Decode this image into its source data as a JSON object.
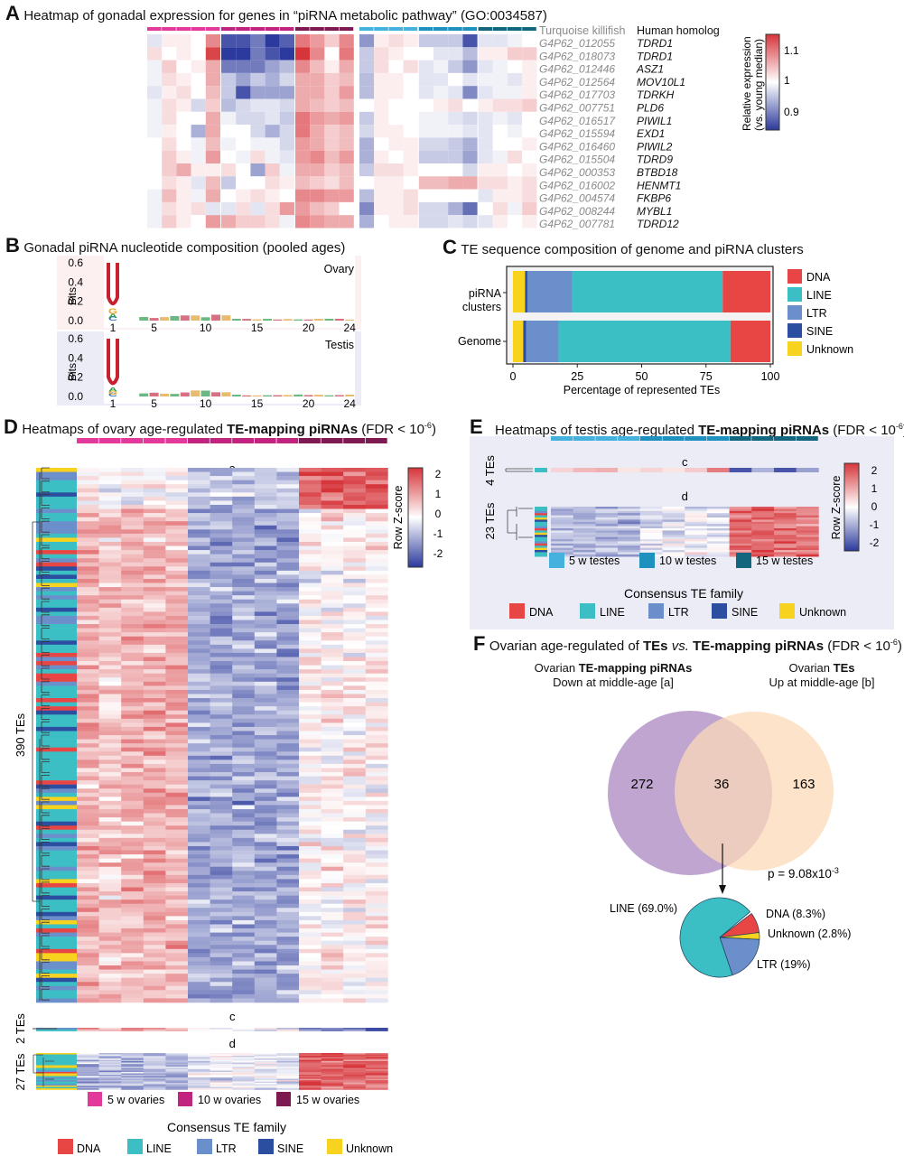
{
  "colors": {
    "ovary5": "#e2399a",
    "ovary10": "#c0247e",
    "ovary15": "#7d1a52",
    "testis5": "#45b2de",
    "testis10": "#1f91bf",
    "testis15": "#12677f",
    "DNA": "#e84545",
    "LINE": "#3bbfc4",
    "LTR": "#6b8fcb",
    "SINE": "#2c4ea0",
    "Unknown": "#f7d21e",
    "heat_low": "#2b3a9c",
    "heat_mid": "#ffffff",
    "heat_high": "#d6353a",
    "panelB_ovary_bg": "#fdf0f1",
    "panelB_testis_bg": "#ececf6",
    "panelE_bg": "#ececf6",
    "venn_a": "#b99bcc",
    "venn_b": "#fbd9b7"
  },
  "panelA": {
    "letter": "A",
    "title": "Heatmap of gonadal expression for genes in “piRNA metabolic pathway” (GO:0034587)",
    "col_header_fish": "Turquoise killifish",
    "col_header_human": "Human homolog",
    "colorbar_label_1": "Relative expression",
    "colorbar_label_2": "(vs. young median)",
    "colorbar_ticks": [
      "1.1",
      "1",
      "0.9"
    ],
    "genes": [
      {
        "id": "G4P62_012055",
        "homolog": "TDRD1"
      },
      {
        "id": "G4P62_018073",
        "homolog": "TDRD1"
      },
      {
        "id": "G4P62_012446",
        "homolog": "ASZ1"
      },
      {
        "id": "G4P62_012564",
        "homolog": "MOV10L1"
      },
      {
        "id": "G4P62_017703",
        "homolog": "TDRKH"
      },
      {
        "id": "G4P62_007751",
        "homolog": "PLD6"
      },
      {
        "id": "G4P62_016517",
        "homolog": "PIWIL1"
      },
      {
        "id": "G4P62_015594",
        "homolog": "EXD1"
      },
      {
        "id": "G4P62_016460",
        "homolog": "PIWIL2"
      },
      {
        "id": "G4P62_015504",
        "homolog": "TDRD9"
      },
      {
        "id": "G4P62_000353",
        "homolog": "BTBD18"
      },
      {
        "id": "G4P62_016002",
        "homolog": "HENMT1"
      },
      {
        "id": "G4P62_004574",
        "homolog": "FKBP6"
      },
      {
        "id": "G4P62_008244",
        "homolog": "MYBL1"
      },
      {
        "id": "G4P62_007781",
        "homolog": "TDRD12"
      }
    ],
    "ovary_values": [
      [
        0.98,
        1.01,
        1.01,
        1.0,
        1.07,
        0.87,
        0.87,
        0.9,
        0.84,
        0.88,
        1.08,
        1.06,
        1.03,
        1.07
      ],
      [
        1.02,
        1.0,
        1.01,
        1.0,
        1.11,
        0.84,
        0.84,
        0.9,
        0.87,
        0.85,
        1.12,
        1.07,
        1.0,
        1.08
      ],
      [
        0.99,
        1.03,
        1.0,
        1.01,
        1.05,
        0.9,
        0.9,
        0.9,
        0.93,
        0.95,
        1.07,
        1.04,
        1.01,
        1.05
      ],
      [
        0.99,
        1.02,
        1.01,
        1.0,
        1.05,
        0.96,
        0.93,
        0.96,
        0.94,
        0.97,
        1.05,
        1.05,
        1.03,
        1.04
      ],
      [
        0.98,
        1.01,
        1.02,
        1.0,
        1.04,
        0.96,
        0.87,
        0.93,
        0.93,
        0.93,
        1.05,
        1.05,
        1.03,
        1.06
      ],
      [
        0.99,
        1.02,
        1.01,
        0.97,
        1.03,
        0.95,
        0.97,
        0.98,
        0.98,
        0.97,
        1.05,
        1.04,
        1.03,
        1.04
      ],
      [
        0.99,
        1.02,
        1.0,
        1.0,
        1.05,
        0.99,
        0.97,
        0.97,
        0.98,
        0.96,
        1.08,
        1.06,
        1.05,
        1.06
      ],
      [
        0.99,
        1.01,
        1.0,
        0.94,
        1.05,
        1.0,
        1.0,
        0.97,
        0.94,
        0.97,
        1.08,
        1.05,
        1.03,
        1.04
      ],
      [
        1.0,
        1.02,
        1.0,
        0.99,
        1.04,
        0.99,
        1.0,
        0.99,
        0.99,
        0.97,
        1.06,
        1.05,
        1.03,
        1.04
      ],
      [
        1.0,
        1.03,
        1.01,
        0.99,
        1.06,
        1.0,
        0.99,
        1.02,
        0.99,
        0.98,
        1.06,
        1.07,
        1.04,
        1.06
      ],
      [
        1.0,
        1.03,
        1.05,
        1.01,
        1.01,
        1.02,
        1.0,
        0.93,
        1.03,
        0.99,
        1.05,
        1.05,
        1.03,
        1.04
      ],
      [
        1.0,
        1.02,
        1.01,
        0.98,
        1.04,
        0.96,
        1.0,
        1.0,
        1.02,
        1.01,
        1.04,
        1.03,
        1.02,
        1.04
      ],
      [
        0.99,
        1.04,
        1.01,
        0.99,
        1.05,
        1.0,
        1.01,
        1.02,
        1.01,
        1.0,
        1.07,
        1.07,
        1.06,
        1.06
      ],
      [
        0.99,
        1.02,
        1.01,
        1.02,
        0.98,
        0.98,
        1.02,
        0.98,
        1.02,
        1.06,
        1.06,
        1.04,
        1.03,
        1.0
      ],
      [
        0.99,
        1.03,
        1.01,
        1.0,
        1.06,
        1.05,
        1.03,
        1.03,
        1.02,
        0.99,
        1.07,
        1.06,
        1.05,
        1.05
      ]
    ],
    "testis_values": [
      [
        0.92,
        1.01,
        1.02,
        1.01,
        0.96,
        0.96,
        0.96,
        0.87,
        0.98,
        0.98,
        0.99,
        1.0
      ],
      [
        0.96,
        1.02,
        1.01,
        1.0,
        1.0,
        0.98,
        0.98,
        0.95,
        1.01,
        1.01,
        1.03,
        1.03
      ],
      [
        0.96,
        1.02,
        1.0,
        1.02,
        0.98,
        0.99,
        0.96,
        0.92,
        0.98,
        0.99,
        1.0,
        1.01
      ],
      [
        0.95,
        1.01,
        1.01,
        1.0,
        0.98,
        0.98,
        1.0,
        0.98,
        0.99,
        0.99,
        0.98,
        1.01
      ],
      [
        0.95,
        1.01,
        1.01,
        1.0,
        0.98,
        0.99,
        0.98,
        0.91,
        0.98,
        0.99,
        0.99,
        1.01
      ],
      [
        1.0,
        1.01,
        1.0,
        1.0,
        1.0,
        1.01,
        1.02,
        1.0,
        1.01,
        1.02,
        1.02,
        1.03
      ],
      [
        0.96,
        1.01,
        1.0,
        1.0,
        0.99,
        0.99,
        0.98,
        0.97,
        0.98,
        0.99,
        0.98,
        1.0
      ],
      [
        0.97,
        1.01,
        1.01,
        1.0,
        0.99,
        0.99,
        0.99,
        0.98,
        0.98,
        1.0,
        0.99,
        1.0
      ],
      [
        0.94,
        1.0,
        1.01,
        1.01,
        0.97,
        0.97,
        0.96,
        0.94,
        0.98,
        1.0,
        1.0,
        1.01
      ],
      [
        0.94,
        1.01,
        1.0,
        1.01,
        0.96,
        0.96,
        0.96,
        0.93,
        0.98,
        0.99,
        1.02,
        1.0
      ],
      [
        0.96,
        1.02,
        1.02,
        1.01,
        1.0,
        1.0,
        1.0,
        0.97,
        1.01,
        1.01,
        1.0,
        1.01
      ],
      [
        1.0,
        1.01,
        1.01,
        1.0,
        1.04,
        1.04,
        1.05,
        1.05,
        1.02,
        1.02,
        1.01,
        1.02
      ],
      [
        0.95,
        1.01,
        1.01,
        1.02,
        1.0,
        1.0,
        1.0,
        1.0,
        0.98,
        1.01,
        1.01,
        1.02
      ],
      [
        0.91,
        1.01,
        1.01,
        1.02,
        0.97,
        0.97,
        0.94,
        0.89,
        1.0,
        1.02,
        0.99,
        1.03
      ],
      [
        0.94,
        1.0,
        1.01,
        1.01,
        0.97,
        0.97,
        0.98,
        0.97,
        0.98,
        1.01,
        1.0,
        1.01
      ]
    ]
  },
  "panelB": {
    "letter": "B",
    "title": "Gonadal piRNA nucleotide composition (pooled ages)",
    "ylabel": "Bits",
    "yticks": [
      "0.6",
      "0.4",
      "0.2",
      "0.0"
    ],
    "xticks": [
      "1",
      "5",
      "10",
      "15",
      "20",
      "24"
    ],
    "ovary_label": "Ovary",
    "testis_label": "Testis"
  },
  "panelC": {
    "letter": "C",
    "title": "TE sequence composition of genome and piRNA clusters",
    "xlabel": "Percentage of represented TEs",
    "xticks": [
      "0",
      "25",
      "50",
      "75",
      "100"
    ],
    "legend": [
      "DNA",
      "LINE",
      "LTR",
      "SINE",
      "Unknown"
    ]
  },
  "panelD": {
    "letter": "D",
    "title_prefix": "Heatmaps of ovary age-regulated ",
    "title_bold": "TE-mapping piRNAs",
    "title_suffix": " (FDR < 10",
    "title_sup": "-6",
    "title_close": ")",
    "cluster_a": "a",
    "cluster_c": "c",
    "cluster_d": "d",
    "row_label_390": "390 TEs",
    "row_label_2": "2 TEs",
    "row_label_27": "27 TEs",
    "zscore_label": "Row Z-score",
    "zscore_ticks": [
      "2",
      "1",
      "0",
      "-1",
      "-2"
    ],
    "age_legend": [
      "5 w ovaries",
      "10 w ovaries",
      "15 w ovaries"
    ],
    "family_legend_title": "Consensus TE family",
    "family_legend": [
      "DNA",
      "LINE",
      "LTR",
      "SINE",
      "Unknown"
    ]
  },
  "panelE": {
    "letter": "E",
    "title_prefix": "Heatmaps of testis age-regulated ",
    "title_bold": "TE-mapping  piRNAs",
    "title_suffix": " (FDR < 10",
    "title_sup": "-6",
    "title_close": ")",
    "cluster_c": "c",
    "cluster_d": "d",
    "row_label_4": "4 TEs",
    "row_label_23": "23 TEs",
    "zscore_label": "Row Z-score",
    "zscore_ticks": [
      "2",
      "1",
      "0",
      "-1",
      "-2"
    ],
    "age_legend": [
      "5 w testes",
      "10 w testes",
      "15 w testes"
    ],
    "family_legend_title": "Consensus TE family",
    "family_legend": [
      "DNA",
      "LINE",
      "LTR",
      "SINE",
      "Unknown"
    ]
  },
  "panelF": {
    "letter": "F",
    "title_p1": "Ovarian age-regulated of ",
    "title_b1": "TEs",
    "title_i": " vs. ",
    "title_b2": "TE-mapping piRNAs",
    "title_suffix": " (FDR < 10",
    "title_sup": "-6",
    "title_close": ")",
    "set_a_line1_prefix": "Ovarian ",
    "set_a_line1_bold": "TE-mapping piRNAs",
    "set_a_line2": "Down at middle-age [a]",
    "set_b_line1_prefix": "Ovarian ",
    "set_b_line1_bold": "TEs",
    "set_b_line2": "Up at middle-age [b]",
    "only_a": "272",
    "overlap": "36",
    "only_b": "163",
    "pvalue_prefix": "p = 9.08x10",
    "pvalue_sup": "-3",
    "pie_labels": [
      "LINE (69.0%)",
      "DNA (8.3%)",
      "Unknown (2.8%)",
      "LTR (19%)"
    ]
  },
  "chart_data": [
    {
      "id": "A",
      "type": "heatmap",
      "title": "Heatmap of gonadal expression for genes in “piRNA metabolic pathway” (GO:0034587)",
      "rows": [
        "TDRD1",
        "TDRD1",
        "ASZ1",
        "MOV10L1",
        "TDRKH",
        "PLD6",
        "PIWIL1",
        "EXD1",
        "PIWIL2",
        "TDRD9",
        "BTBD18",
        "HENMT1",
        "FKBP6",
        "MYBL1",
        "TDRD12"
      ],
      "column_groups": [
        {
          "tissue": "ovary",
          "ages": [
            "5 w",
            "5 w",
            "5 w",
            "5 w",
            "5 w",
            "10 w",
            "10 w",
            "10 w",
            "10 w",
            "10 w",
            "15 w",
            "15 w",
            "15 w",
            "15 w"
          ]
        },
        {
          "tissue": "testis",
          "ages": [
            "5 w",
            "5 w",
            "5 w",
            "5 w",
            "10 w",
            "10 w",
            "10 w",
            "10 w",
            "15 w",
            "15 w",
            "15 w",
            "15 w"
          ]
        }
      ],
      "color_scale": {
        "label": "Relative expression (vs. young median)",
        "min": 0.85,
        "mid": 1.0,
        "max": 1.12,
        "ticks": [
          0.9,
          1,
          1.1
        ]
      }
    },
    {
      "id": "B",
      "type": "sequence-logo",
      "title": "Gonadal piRNA nucleotide composition (pooled ages)",
      "ylabel": "Bits",
      "ylim": [
        0,
        0.6
      ],
      "positions": 24,
      "series": [
        {
          "name": "Ovary",
          "pos1": {
            "U": 0.48,
            "G": 0.06,
            "A": 0.04,
            "C": 0.03
          }
        },
        {
          "name": "Testis",
          "pos1": {
            "U": 0.52,
            "A": 0.04,
            "G": 0.03,
            "C": 0.02
          }
        }
      ]
    },
    {
      "id": "C",
      "type": "bar",
      "orientation": "horizontal",
      "stacked": true,
      "title": "TE sequence composition of genome and piRNA clusters",
      "categories": [
        "piRNA clusters",
        "Genome"
      ],
      "series": [
        {
          "name": "Unknown",
          "values": [
            4.7,
            4.0
          ]
        },
        {
          "name": "SINE",
          "values": [
            0.9,
            1.1
          ]
        },
        {
          "name": "LTR",
          "values": [
            17.4,
            12.6
          ]
        },
        {
          "name": "LINE",
          "values": [
            58.5,
            66.8
          ]
        },
        {
          "name": "DNA",
          "values": [
            18.5,
            15.5
          ]
        }
      ],
      "xlabel": "Percentage of represented TEs",
      "xlim": [
        0,
        100
      ],
      "legend": "right"
    },
    {
      "id": "D",
      "type": "heatmap",
      "title": "Heatmaps of ovary age-regulated TE-mapping piRNAs (FDR < 10^-6)",
      "clusters": [
        {
          "name": "a",
          "n_TEs": 390
        },
        {
          "name": "c",
          "n_TEs": 2
        },
        {
          "name": "d",
          "n_TEs": 27
        }
      ],
      "columns": [
        "5 w",
        "5 w",
        "5 w",
        "5 w",
        "5 w",
        "10 w",
        "10 w",
        "10 w",
        "10 w",
        "10 w",
        "15 w",
        "15 w",
        "15 w",
        "15 w"
      ],
      "color_scale": {
        "label": "Row Z-score",
        "min": -2.3,
        "max": 2.3,
        "ticks": [
          -2,
          -1,
          0,
          1,
          2
        ]
      }
    },
    {
      "id": "E",
      "type": "heatmap",
      "title": "Heatmaps of testis age-regulated TE-mapping piRNAs (FDR < 10^-6)",
      "clusters": [
        {
          "name": "c",
          "n_TEs": 4
        },
        {
          "name": "d",
          "n_TEs": 23
        }
      ],
      "columns": [
        "5 w",
        "5 w",
        "5 w",
        "5 w",
        "10 w",
        "10 w",
        "10 w",
        "10 w",
        "15 w",
        "15 w",
        "15 w",
        "15 w"
      ],
      "color_scale": {
        "label": "Row Z-score",
        "min": -2.3,
        "max": 2.3,
        "ticks": [
          -2,
          -1,
          0,
          1,
          2
        ]
      }
    },
    {
      "id": "F-venn",
      "type": "venn",
      "sets": [
        {
          "name": "Ovarian TE-mapping piRNAs Down at middle-age [a]",
          "only": 272
        },
        {
          "name": "Ovarian TEs Up at middle-age [b]",
          "only": 163
        }
      ],
      "overlap": 36,
      "pvalue": "9.08x10^-3"
    },
    {
      "id": "F-pie",
      "type": "pie",
      "categories": [
        "LINE",
        "DNA",
        "Unknown",
        "LTR"
      ],
      "values": [
        69.0,
        8.3,
        2.8,
        19.0
      ]
    }
  ]
}
